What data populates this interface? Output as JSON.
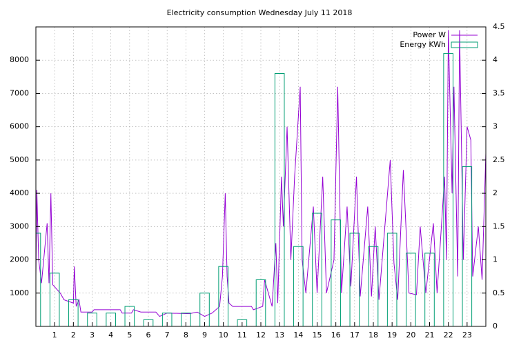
{
  "chart_data": {
    "type": "line",
    "title": "Electricity consumption Wednesday July 11 2018",
    "xlim": [
      0,
      24
    ],
    "xticks": [
      1,
      2,
      3,
      4,
      5,
      6,
      7,
      8,
      9,
      10,
      11,
      12,
      13,
      14,
      15,
      16,
      17,
      18,
      19,
      20,
      21,
      22,
      23
    ],
    "ylim": [
      0,
      9000
    ],
    "yticks": [
      1000,
      2000,
      3000,
      4000,
      5000,
      6000,
      7000,
      8000
    ],
    "y2lim": [
      0,
      4.5
    ],
    "y2ticks": [
      0,
      0.5,
      1,
      1.5,
      2,
      2.5,
      3,
      3.5,
      4,
      4.5
    ],
    "grid": true,
    "legend": "top-right",
    "series": [
      {
        "name": "Power W",
        "color": "#9400d3",
        "type": "line",
        "x": [
          0,
          0.05,
          0.15,
          0.3,
          0.6,
          0.7,
          0.8,
          0.9,
          1.3,
          1.5,
          2.0,
          2.05,
          2.15,
          2.3,
          2.4,
          3.0,
          3.1,
          4.5,
          4.6,
          5.1,
          5.2,
          5.6,
          6.4,
          6.6,
          7,
          8.2,
          8.6,
          9.0,
          9.4,
          9.8,
          9.95,
          10.1,
          10.2,
          10.3,
          10.5,
          11.5,
          11.6,
          12.1,
          12.2,
          12.6,
          12.8,
          12.9,
          13.1,
          13.2,
          13.4,
          13.6,
          13.8,
          14.1,
          14.2,
          14.4,
          14.8,
          15.0,
          15.3,
          15.5,
          15.9,
          16.1,
          16.3,
          16.6,
          16.8,
          17.1,
          17.3,
          17.7,
          17.9,
          18.1,
          18.3,
          18.9,
          19.1,
          19.3,
          19.6,
          19.9,
          20.3,
          20.5,
          20.8,
          21.2,
          21.4,
          21.8,
          21.9,
          22.0,
          22.2,
          22.3,
          22.5,
          22.6,
          22.8,
          23.0,
          23.2,
          23.3,
          23.6,
          23.8,
          24.0
        ],
        "values": [
          1500,
          4100,
          2000,
          1300,
          3100,
          1300,
          4000,
          1250,
          1000,
          800,
          700,
          1800,
          600,
          800,
          430,
          430,
          500,
          500,
          400,
          400,
          500,
          430,
          430,
          300,
          400,
          380,
          430,
          300,
          400,
          600,
          1500,
          4000,
          1500,
          700,
          600,
          600,
          500,
          600,
          1400,
          600,
          2500,
          700,
          4500,
          3000,
          6000,
          2000,
          4500,
          7200,
          2000,
          1000,
          3600,
          1000,
          4500,
          1000,
          2000,
          7200,
          1000,
          3600,
          1200,
          4500,
          900,
          3600,
          900,
          3000,
          800,
          5000,
          1900,
          800,
          4700,
          1000,
          950,
          3000,
          1000,
          3100,
          1000,
          4500,
          2000,
          8900,
          4000,
          7200,
          1500,
          8900,
          2000,
          6000,
          5600,
          1500,
          3000,
          1400,
          5200
        ]
      },
      {
        "name": "Energy KWh",
        "color": "#009e73",
        "type": "bar",
        "axis": "y2",
        "x": [
          0,
          1,
          2,
          3,
          4,
          5,
          6,
          7,
          8,
          9,
          10,
          11,
          12,
          13,
          14,
          15,
          16,
          17,
          18,
          19,
          20,
          21,
          22,
          23
        ],
        "values": [
          1.4,
          0.8,
          0.4,
          0.2,
          0.2,
          0.3,
          0.1,
          0.2,
          0.2,
          0.5,
          0.9,
          0.1,
          0.7,
          3.8,
          1.2,
          1.7,
          1.6,
          1.4,
          1.2,
          1.4,
          1.1,
          1.1,
          4.1,
          2.4
        ]
      }
    ]
  }
}
